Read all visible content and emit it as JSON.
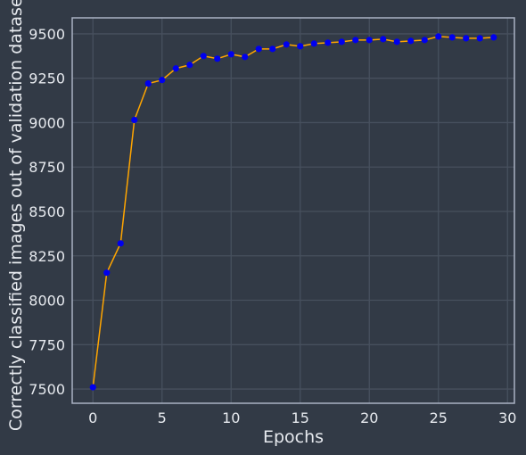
{
  "chart_data": {
    "type": "line",
    "title": "",
    "xlabel": "Epochs",
    "ylabel": "Correctly classified images out of validation dataset",
    "xlim": [
      -1.5,
      30.5
    ],
    "ylim": [
      7420,
      9590
    ],
    "xticks": [
      0,
      5,
      10,
      15,
      20,
      25,
      30
    ],
    "yticks": [
      7500,
      7750,
      8000,
      8250,
      8500,
      8750,
      9000,
      9250,
      9500
    ],
    "grid": true,
    "legend": "none",
    "line_color": "#ffa500",
    "marker_color": "#0000ee",
    "background_color": "#323a46",
    "x": [
      0,
      1,
      2,
      3,
      4,
      5,
      6,
      7,
      8,
      9,
      10,
      11,
      12,
      13,
      14,
      15,
      16,
      17,
      18,
      19,
      20,
      21,
      22,
      23,
      24,
      25,
      26,
      27,
      28,
      29
    ],
    "series": [
      {
        "values": [
          7510,
          8155,
          8320,
          9015,
          9220,
          9240,
          9305,
          9325,
          9375,
          9360,
          9385,
          9370,
          9415,
          9415,
          9440,
          9430,
          9445,
          9450,
          9455,
          9465,
          9465,
          9470,
          9455,
          9460,
          9465,
          9485,
          9480,
          9475,
          9475,
          9480
        ]
      }
    ]
  }
}
